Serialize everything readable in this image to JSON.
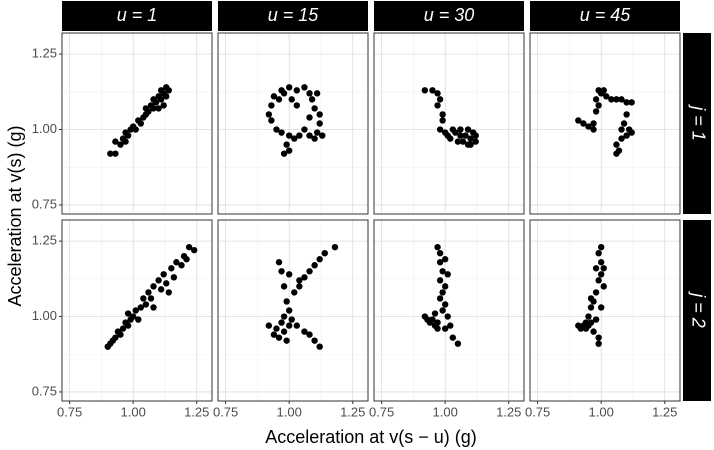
{
  "chart_data": {
    "type": "scatter",
    "xlabel": "Acceleration at v(s − u) (g)",
    "ylabel": "Acceleration at v(s) (g)",
    "columns": [
      "u = 1",
      "u = 15",
      "u = 30",
      "u = 45"
    ],
    "rows": [
      "j = 1",
      "j = 2"
    ],
    "color": "#000000",
    "grid": true,
    "xlim": [
      0.72,
      1.31
    ],
    "ylim": [
      0.72,
      1.32
    ],
    "xticks": [
      0.75,
      {
        "value": 1,
        "label": "1.00"
      },
      1.25
    ],
    "yticks": [
      0.75,
      {
        "value": 1,
        "label": "1.00"
      },
      1.25
    ],
    "minor_xticks": [
      0.875,
      1.125
    ],
    "minor_yticks": [
      0.875,
      1.125
    ],
    "panels": [
      [
        {
          "x": [
            0.91,
            0.93,
            0.93,
            0.95,
            0.96,
            0.97,
            0.98,
            0.99,
            1.0,
            1.01,
            1.02,
            1.03,
            1.04,
            1.05,
            1.05,
            1.06,
            1.07,
            1.08,
            1.08,
            1.09,
            1.1,
            1.11,
            1.11,
            1.12,
            1.13,
            1.14,
            1.12,
            1.13,
            1.1,
            0.97
          ],
          "y": [
            0.92,
            0.92,
            0.96,
            0.95,
            0.97,
            0.99,
            0.98,
            1.0,
            1.01,
            1.0,
            1.03,
            1.02,
            1.04,
            1.05,
            1.07,
            1.06,
            1.08,
            1.07,
            1.1,
            1.09,
            1.11,
            1.1,
            1.13,
            1.12,
            1.14,
            1.13,
            1.08,
            1.11,
            1.07,
            0.96
          ]
        },
        {
          "x": [
            0.97,
            1.0,
            1.03,
            1.06,
            1.08,
            1.09,
            1.1,
            1.12,
            1.12,
            1.11,
            1.13,
            1.1,
            1.08,
            1.06,
            1.04,
            1.02,
            1.0,
            0.99,
            0.98,
            1.0,
            0.97,
            0.95,
            0.93,
            0.92,
            0.93,
            0.96,
            0.98,
            1.01,
            1.03,
            0.94,
            1.08,
            1.11
          ],
          "y": [
            1.13,
            1.14,
            1.13,
            1.14,
            1.12,
            1.1,
            1.07,
            1.05,
            1.02,
            0.99,
            0.98,
            0.97,
            0.98,
            1.0,
            0.98,
            0.97,
            0.98,
            0.95,
            0.92,
            0.93,
            0.99,
            1.0,
            1.03,
            1.05,
            1.08,
            1.1,
            1.12,
            1.1,
            1.08,
            1.11,
            1.04,
            1.12
          ]
        },
        {
          "x": [
            0.92,
            0.97,
            0.99,
            0.98,
            1.0,
            1.04,
            1.06,
            1.08,
            1.1,
            1.12,
            1.05,
            1.02,
            1.09,
            1.07,
            0.97,
            0.98,
            0.99,
            1.01,
            1.11,
            1.12,
            1.09,
            0.95,
            1.03,
            1.06,
            1.1
          ],
          "y": [
            1.13,
            1.12,
            1.05,
            1.0,
            0.99,
            0.99,
            1.0,
            0.98,
            0.97,
            0.98,
            0.96,
            0.97,
            0.95,
            0.96,
            1.08,
            1.1,
            1.03,
            0.98,
            0.99,
            0.96,
            1.0,
            1.13,
            1.0,
            0.98,
            0.95
          ]
        },
        {
          "x": [
            0.91,
            0.93,
            0.95,
            0.97,
            0.98,
            0.98,
            0.99,
            1.01,
            1.02,
            1.04,
            1.06,
            1.08,
            1.1,
            1.12,
            1.1,
            1.08,
            1.1,
            1.12,
            1.08,
            1.06,
            1.06,
            1.07,
            0.97,
            1.0,
            1.09,
            1.11,
            0.99
          ],
          "y": [
            1.03,
            1.02,
            1.01,
            1.02,
            1.06,
            1.1,
            1.13,
            1.13,
            1.11,
            1.1,
            1.1,
            1.1,
            1.09,
            1.09,
            1.05,
            1.0,
            0.98,
            0.99,
            0.97,
            0.95,
            0.92,
            0.93,
            1.0,
            1.12,
            1.02,
            1.0,
            1.08
          ]
        }
      ],
      [
        {
          "x": [
            0.9,
            0.91,
            0.92,
            0.93,
            0.94,
            0.95,
            0.96,
            0.97,
            0.98,
            0.99,
            1.0,
            1.01,
            1.03,
            1.04,
            1.05,
            1.06,
            1.07,
            1.08,
            1.1,
            1.11,
            1.12,
            1.13,
            1.15,
            1.16,
            1.17,
            1.19,
            1.2,
            1.21,
            1.22,
            1.24,
            1.02,
            1.08,
            1.14,
            0.98
          ],
          "y": [
            0.9,
            0.91,
            0.92,
            0.93,
            0.95,
            0.94,
            0.96,
            0.98,
            0.97,
            0.99,
            1.0,
            1.02,
            1.03,
            1.06,
            1.04,
            1.08,
            1.06,
            1.1,
            1.12,
            1.09,
            1.14,
            1.11,
            1.16,
            1.13,
            1.18,
            1.17,
            1.2,
            1.19,
            1.23,
            1.22,
            0.99,
            1.03,
            1.08,
            1.01
          ]
        },
        {
          "x": [
            0.92,
            0.95,
            0.97,
            0.98,
            0.96,
            0.97,
            0.98,
            0.99,
            1.0,
            1.01,
            0.96,
            0.94,
            1.02,
            1.04,
            1.06,
            1.08,
            1.1,
            1.12,
            1.14,
            1.18,
            1.03,
            1.06,
            1.08,
            1.1,
            1.12,
            0.99,
            1.0,
            1.04,
            1.0,
            0.98
          ],
          "y": [
            0.97,
            0.96,
            0.98,
            0.95,
            1.18,
            1.15,
            1.1,
            1.05,
            1.02,
            0.99,
            0.93,
            0.94,
            1.08,
            1.1,
            1.13,
            1.15,
            1.17,
            1.19,
            1.21,
            1.23,
            0.97,
            0.95,
            0.94,
            0.92,
            0.9,
            0.92,
            0.97,
            1.12,
            1.14,
            1.0
          ]
        },
        {
          "x": [
            0.97,
            0.98,
            0.98,
            0.99,
            0.98,
            1.0,
            0.99,
            0.98,
            1.0,
            0.99,
            0.92,
            0.93,
            0.94,
            0.95,
            0.96,
            0.97,
            0.97,
            1.0,
            1.02,
            1.03,
            1.05,
            1.01,
            1.0,
            0.96,
            1.01
          ],
          "y": [
            1.23,
            1.21,
            1.18,
            1.15,
            1.12,
            1.1,
            1.08,
            1.06,
            1.04,
            1.02,
            1.0,
            0.99,
            0.98,
            0.99,
            0.97,
            0.98,
            0.96,
            0.96,
            0.97,
            0.93,
            0.91,
            1.14,
            1.19,
            1.01,
            1.0
          ]
        },
        {
          "x": [
            1.0,
            0.99,
            1.0,
            0.98,
            1.0,
            0.99,
            1.01,
            0.98,
            0.97,
            0.96,
            0.95,
            0.94,
            0.91,
            0.92,
            0.93,
            0.94,
            0.95,
            0.96,
            0.98,
            0.99,
            0.99,
            0.97,
            1.01,
            0.96,
            1.0
          ],
          "y": [
            1.23,
            1.21,
            1.18,
            1.16,
            1.14,
            1.12,
            1.1,
            1.08,
            1.05,
            1.03,
            1.0,
            0.98,
            0.97,
            0.96,
            0.97,
            0.96,
            0.97,
            0.98,
            0.99,
            0.93,
            0.91,
            0.95,
            1.16,
            1.06,
            1.03
          ]
        }
      ]
    ]
  }
}
